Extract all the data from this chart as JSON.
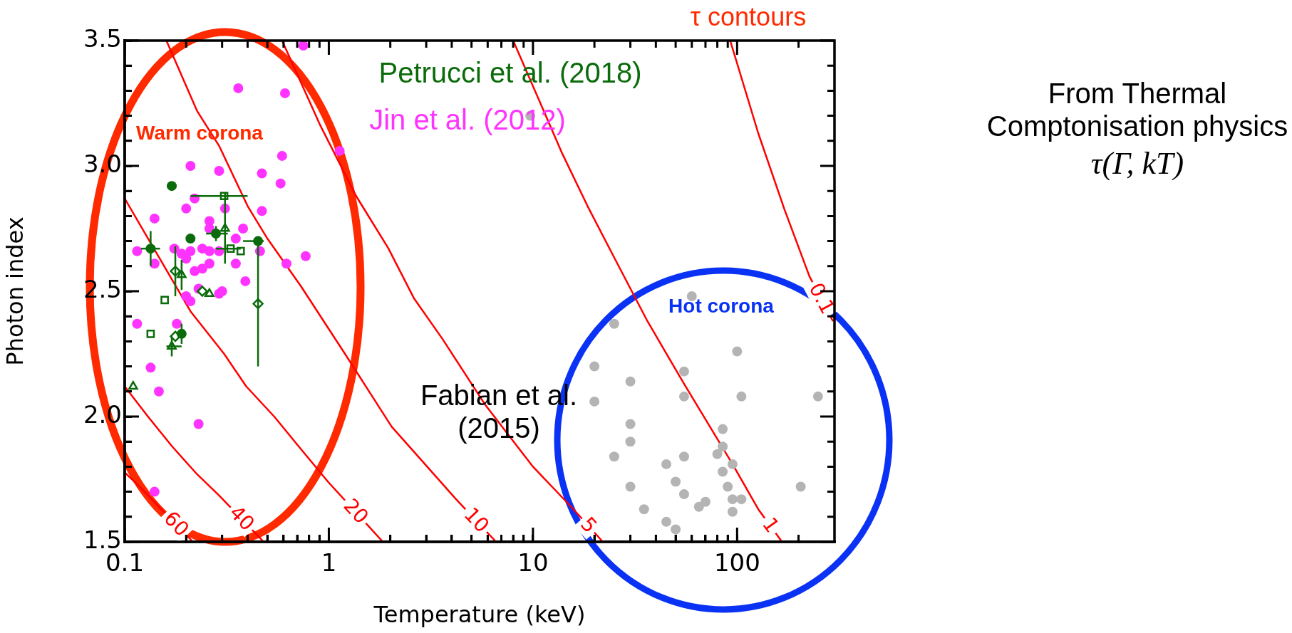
{
  "chart_data": {
    "type": "scatter",
    "xlabel": "Temperature (keV)",
    "ylabel": "Photon index",
    "log": "x",
    "xlim": [
      0.1,
      300
    ],
    "ylim": [
      1.5,
      3.5
    ],
    "xticks": [
      0.1,
      {
        "value": 0.2,
        "label": null
      },
      {
        "value": 0.3,
        "label": null
      },
      {
        "value": 0.4,
        "label": null
      },
      {
        "value": 0.5,
        "label": null
      },
      {
        "value": 0.6,
        "label": null
      },
      {
        "value": 0.7,
        "label": null
      },
      {
        "value": 0.8,
        "label": null
      },
      {
        "value": 0.9,
        "label": null
      },
      1,
      {
        "value": 2,
        "label": null
      },
      {
        "value": 3,
        "label": null
      },
      {
        "value": 4,
        "label": null
      },
      {
        "value": 5,
        "label": null
      },
      {
        "value": 6,
        "label": null
      },
      {
        "value": 7,
        "label": null
      },
      {
        "value": 8,
        "label": null
      },
      {
        "value": 9,
        "label": null
      },
      10,
      {
        "value": 20,
        "label": null
      },
      {
        "value": 30,
        "label": null
      },
      {
        "value": 40,
        "label": null
      },
      {
        "value": 50,
        "label": null
      },
      {
        "value": 60,
        "label": null
      },
      {
        "value": 70,
        "label": null
      },
      {
        "value": 80,
        "label": null
      },
      {
        "value": 90,
        "label": null
      },
      100,
      {
        "value": 200,
        "label": null
      }
    ],
    "yticks": [
      1.5,
      {
        "value": 1.6,
        "label": null
      },
      {
        "value": 1.7,
        "label": null
      },
      {
        "value": 1.8,
        "label": null
      },
      {
        "value": 1.9,
        "label": null
      },
      {
        "value": 2,
        "label": "2.0"
      },
      {
        "value": 2.1,
        "label": null
      },
      {
        "value": 2.2,
        "label": null
      },
      {
        "value": 2.3,
        "label": null
      },
      {
        "value": 2.4,
        "label": null
      },
      2.5,
      {
        "value": 2.6,
        "label": null
      },
      {
        "value": 2.7,
        "label": null
      },
      {
        "value": 2.8,
        "label": null
      },
      {
        "value": 2.9,
        "label": null
      },
      {
        "value": 3,
        "label": "3.0"
      },
      {
        "value": 3.1,
        "label": null
      },
      {
        "value": 3.2,
        "label": null
      },
      {
        "value": 3.3,
        "label": null
      },
      {
        "value": 3.4,
        "label": null
      },
      3.5
    ],
    "series": [
      {
        "name": "Petrucci et al. (2018)",
        "type": "scatter",
        "color": "#0a6b0a",
        "marker": "circle",
        "x": [
          0.17,
          0.21,
          0.134,
          0.28,
          0.45,
          0.19
        ],
        "values": [
          2.92,
          2.71,
          2.67,
          2.73,
          2.7,
          2.33
        ],
        "errors": [
          null,
          null,
          0.07,
          0.03,
          null,
          0.04
        ],
        "xerrors": [
          null,
          null,
          [
            0.12,
            0.149
          ],
          [
            0.25,
            0.32
          ],
          [
            0.38,
            0.48
          ],
          null
        ]
      },
      {
        "type": "scatter",
        "color": "#0a6b0a",
        "marker": "square",
        "x": [
          0.307,
          0.33,
          0.37,
          0.157,
          0.134
        ],
        "values": [
          2.88,
          2.67,
          2.66,
          2.465,
          2.33
        ],
        "xerrors": [
          [
            0.21,
            0.4
          ],
          [
            0.28,
            0.37
          ],
          null,
          null,
          null
        ]
      },
      {
        "type": "scatter",
        "color": "#0a6b0a",
        "marker": "triangle",
        "x": [
          0.31,
          0.26,
          0.19,
          0.17,
          0.11
        ],
        "values": [
          2.75,
          2.49,
          2.565,
          2.28,
          2.12
        ],
        "errors": [
          0.14,
          null,
          0.06,
          0.04,
          null
        ],
        "xerrors": [
          null,
          null,
          null,
          [
            0.16,
            0.19
          ],
          null
        ]
      },
      {
        "type": "scatter",
        "color": "#0a6b0a",
        "marker": "diamond",
        "x": [
          0.177,
          0.24,
          0.45,
          0.177
        ],
        "values": [
          2.58,
          2.5,
          2.45,
          2.32
        ],
        "errors": [
          0.1,
          null,
          0.25,
          null
        ]
      },
      {
        "name": "Jin et al. (2012)",
        "type": "scatter",
        "color": "#ff33ff",
        "marker": "circle",
        "x": [
          0.75,
          0.36,
          0.61,
          1.13,
          0.59,
          0.21,
          0.29,
          0.47,
          0.58,
          0.22,
          0.2,
          0.31,
          0.47,
          0.14,
          0.26,
          0.26,
          0.38,
          0.35,
          0.115,
          0.14,
          0.175,
          0.19,
          0.21,
          0.24,
          0.26,
          0.29,
          0.2,
          0.46,
          0.77,
          0.62,
          0.35,
          0.26,
          0.24,
          0.22,
          0.39,
          0.23,
          0.29,
          0.3,
          0.2,
          0.21,
          0.115,
          0.18,
          0.134,
          0.147,
          0.23,
          0.14
        ],
        "values": [
          3.48,
          3.31,
          3.29,
          3.06,
          3.04,
          3.0,
          2.98,
          2.97,
          2.93,
          2.87,
          2.83,
          2.83,
          2.82,
          2.79,
          2.78,
          2.75,
          2.75,
          2.71,
          2.66,
          2.61,
          2.67,
          2.65,
          2.66,
          2.67,
          2.66,
          2.66,
          2.63,
          2.66,
          2.64,
          2.61,
          2.61,
          2.61,
          2.59,
          2.58,
          2.54,
          2.51,
          2.49,
          2.5,
          2.48,
          2.46,
          2.37,
          2.37,
          2.195,
          2.1,
          1.97,
          1.7
        ]
      },
      {
        "name": "Fabian et al. (2015)",
        "type": "scatter",
        "color": "#b4b4b4",
        "marker": "circle",
        "x": [
          9.7,
          60,
          25,
          100,
          20,
          55,
          30,
          55,
          105,
          249,
          20,
          30,
          85,
          30,
          85,
          25,
          55,
          80,
          45,
          95,
          85,
          50,
          30,
          90,
          205,
          55,
          70,
          65,
          95,
          105,
          35,
          95,
          45,
          50
        ],
        "values": [
          3.2,
          2.48,
          2.37,
          2.26,
          2.2,
          2.18,
          2.14,
          2.08,
          2.08,
          2.08,
          2.06,
          1.97,
          1.95,
          1.9,
          1.88,
          1.84,
          1.84,
          1.85,
          1.81,
          1.81,
          1.78,
          1.74,
          1.72,
          1.72,
          1.72,
          1.69,
          1.66,
          1.64,
          1.67,
          1.67,
          1.63,
          1.62,
          1.58,
          1.55
        ]
      },
      {
        "name": "60",
        "type": "line",
        "color": "#ff0000",
        "x": [
          0.1,
          0.122,
          0.147,
          0.216
        ],
        "values": [
          1.777,
          1.71,
          1.64,
          1.5
        ]
      },
      {
        "name": "40",
        "type": "line",
        "color": "#ff0000",
        "x": [
          0.1,
          0.13,
          0.171,
          0.226,
          0.29,
          0.48
        ],
        "values": [
          2.12,
          2.0,
          1.88,
          1.77,
          1.685,
          1.5
        ]
      },
      {
        "name": "20",
        "type": "line",
        "color": "#ff0000",
        "x": [
          0.1,
          0.21,
          0.307,
          0.394,
          0.54,
          0.73,
          0.99,
          1.84
        ],
        "values": [
          2.87,
          2.42,
          2.25,
          2.12,
          2.0,
          1.87,
          1.74,
          1.5
        ]
      },
      {
        "name": "10",
        "type": "line",
        "color": "#ff0000",
        "x": [
          0.16,
          0.226,
          0.29,
          0.4,
          0.5,
          0.73,
          1.2,
          2.03,
          4.2,
          6.6
        ],
        "values": [
          3.5,
          3.22,
          3.08,
          2.84,
          2.71,
          2.52,
          2.25,
          1.96,
          1.67,
          1.5
        ]
      },
      {
        "name": "5",
        "type": "line",
        "color": "#ff0000",
        "x": [
          0.59,
          0.91,
          1.36,
          1.96,
          2.62,
          3.6,
          5.8,
          10,
          15.8,
          22
        ],
        "values": [
          3.5,
          3.16,
          2.88,
          2.67,
          2.47,
          2.31,
          2.05,
          1.8,
          1.63,
          1.5
        ]
      },
      {
        "name": "1",
        "type": "line",
        "color": "#ff0000",
        "x": [
          8,
          13.9,
          18.5,
          24.8,
          36.4,
          55,
          95,
          127,
          166
        ],
        "values": [
          3.5,
          3.05,
          2.84,
          2.64,
          2.38,
          2.13,
          1.81,
          1.63,
          1.5
        ]
      },
      {
        "name": "0.1",
        "type": "line",
        "color": "#ff0000",
        "x": [
          92.5,
          127,
          170,
          226,
          295
        ],
        "values": [
          3.5,
          3.13,
          2.83,
          2.56,
          2.38
        ]
      }
    ],
    "annotations": [
      "τ contours",
      "Warm corona",
      "Hot corona",
      "From Thermal Comptonisation physics",
      "τ(Γ, kT)"
    ]
  }
}
